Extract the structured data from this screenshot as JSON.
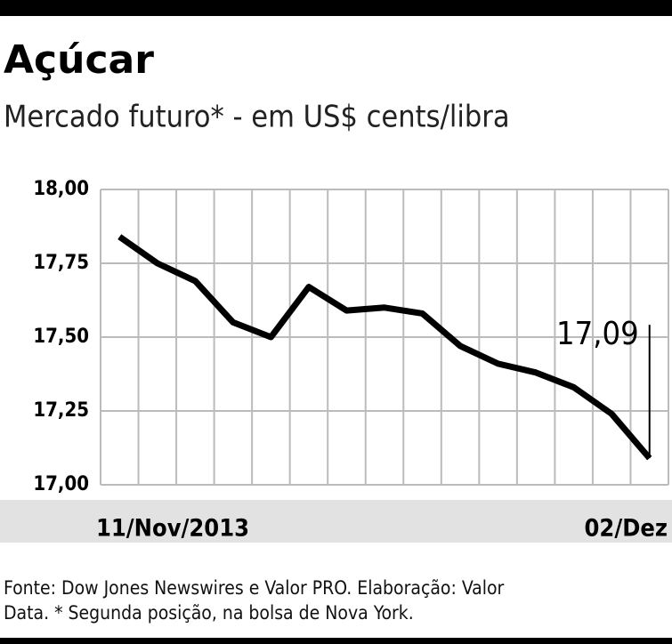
{
  "chart_data": {
    "type": "line",
    "title": "Açúcar",
    "subtitle": "Mercado futuro* - em US$ cents/libra",
    "categories": [
      "11/Nov/2013",
      null,
      null,
      null,
      null,
      null,
      null,
      null,
      null,
      null,
      null,
      null,
      null,
      null,
      "02/Dez"
    ],
    "series": [
      {
        "name": "Açúcar",
        "color": "#000000",
        "values": [
          17.84,
          17.75,
          17.69,
          17.55,
          17.5,
          17.67,
          17.59,
          17.6,
          17.58,
          17.47,
          17.41,
          17.38,
          17.33,
          17.24,
          17.09
        ],
        "value_labels": [
          null,
          null,
          null,
          null,
          null,
          null,
          null,
          null,
          null,
          null,
          null,
          null,
          null,
          null,
          "17,09"
        ]
      }
    ],
    "ylim": [
      17,
      18
    ],
    "yticks": [
      {
        "value": 17,
        "label": "17,00"
      },
      {
        "value": 17.25,
        "label": "17,25"
      },
      {
        "value": 17.5,
        "label": "17,50"
      },
      {
        "value": 17.75,
        "label": "17,75"
      },
      {
        "value": 18,
        "label": "18,00"
      }
    ],
    "grid": true,
    "source": "Fonte: Dow Jones Newswires e Valor PRO. Elaboração: Valor",
    "source_note": "Data. * Segunda posição, na bolsa de Nova York."
  }
}
